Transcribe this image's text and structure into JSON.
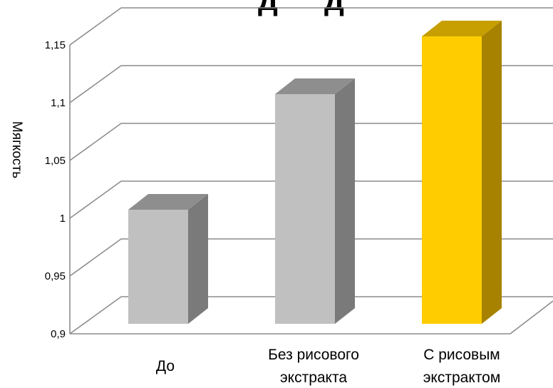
{
  "chart_data": {
    "type": "bar",
    "title": "",
    "xlabel": "",
    "ylabel": "Мягкость",
    "ylim": [
      0.9,
      1.15
    ],
    "yticks": [
      0.9,
      0.95,
      1,
      1.05,
      1.1,
      1.15
    ],
    "ytick_labels": [
      "0,9",
      "0,95",
      "1",
      "1,05",
      "1,1",
      "1,15"
    ],
    "categories": [
      [
        "До"
      ],
      [
        "Без рисового",
        "экстракта"
      ],
      [
        "С рисовым",
        "экстрактом"
      ]
    ],
    "values": [
      1.0,
      1.1,
      1.15
    ],
    "colors": [
      {
        "front": "#c0c0c0",
        "top": "#8e8e8e",
        "side": "#7a7a7a"
      },
      {
        "front": "#c0c0c0",
        "top": "#8e8e8e",
        "side": "#7a7a7a"
      },
      {
        "front": "#ffcc00",
        "top": "#c79f00",
        "side": "#a78200"
      }
    ],
    "grid": true,
    "style": "3d"
  }
}
